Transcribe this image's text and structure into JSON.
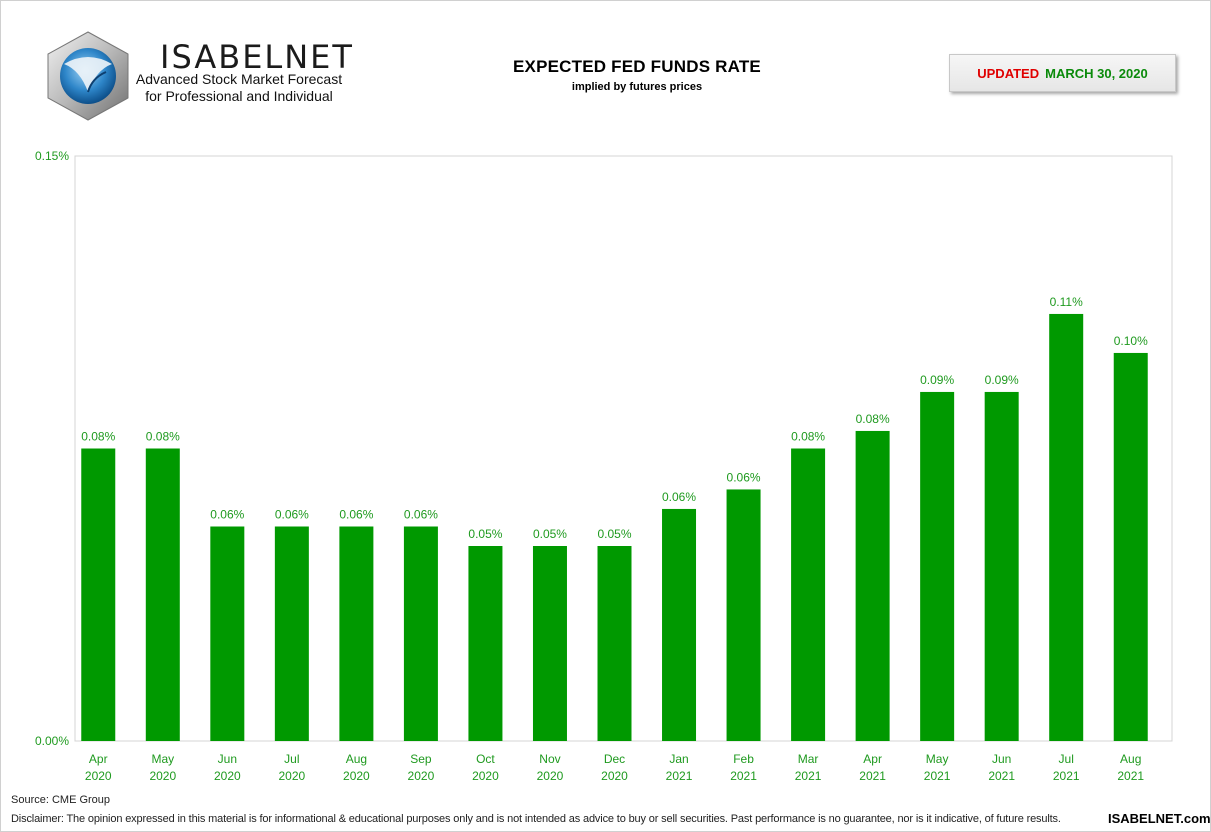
{
  "header": {
    "brand": "ISABELNET",
    "tagline_1": "Advanced Stock Market Forecast",
    "tagline_2": "for Professional and Individual",
    "updated_label": "UPDATED",
    "updated_date": "MARCH 30, 2020"
  },
  "footer": {
    "source": "Source: CME Group",
    "disclaimer": "Disclaimer: The opinion expressed in this material is for informational & educational purposes only and is not intended as advice to buy or sell securities. Past performance is no guarantee, nor is it indicative, of future results.",
    "site": "ISABELNET.com"
  },
  "colors": {
    "bar": "#009900",
    "label": "#1f9a1f",
    "updated_label": "#e00000",
    "updated_date": "#0a8a0a"
  },
  "icons": {
    "logo": "isabelnet-logo-icon"
  },
  "chart_data": {
    "type": "bar",
    "title": "EXPECTED FED FUNDS RATE",
    "subtitle": "implied by futures prices",
    "categories": [
      [
        "Apr",
        "2020"
      ],
      [
        "May",
        "2020"
      ],
      [
        "Jun",
        "2020"
      ],
      [
        "Jul",
        "2020"
      ],
      [
        "Aug",
        "2020"
      ],
      [
        "Sep",
        "2020"
      ],
      [
        "Oct",
        "2020"
      ],
      [
        "Nov",
        "2020"
      ],
      [
        "Dec",
        "2020"
      ],
      [
        "Jan",
        "2021"
      ],
      [
        "Feb",
        "2021"
      ],
      [
        "Mar",
        "2021"
      ],
      [
        "Apr",
        "2021"
      ],
      [
        "May",
        "2021"
      ],
      [
        "Jun",
        "2021"
      ],
      [
        "Jul",
        "2021"
      ],
      [
        "Aug",
        "2021"
      ]
    ],
    "values": [
      0.075,
      0.075,
      0.055,
      0.055,
      0.055,
      0.055,
      0.05,
      0.05,
      0.05,
      0.0595,
      0.0645,
      0.075,
      0.0795,
      0.0895,
      0.0895,
      0.1095,
      0.0995
    ],
    "data_labels": [
      "0.08%",
      "0.08%",
      "0.06%",
      "0.06%",
      "0.06%",
      "0.06%",
      "0.05%",
      "0.05%",
      "0.05%",
      "0.06%",
      "0.06%",
      "0.08%",
      "0.08%",
      "0.09%",
      "0.09%",
      "0.11%",
      "0.10%"
    ],
    "ylim": [
      0,
      0.15
    ],
    "y_ticks": [
      "0.00%",
      "0.15%"
    ],
    "xlabel": "",
    "ylabel": "",
    "grid": false,
    "legend": "none"
  }
}
